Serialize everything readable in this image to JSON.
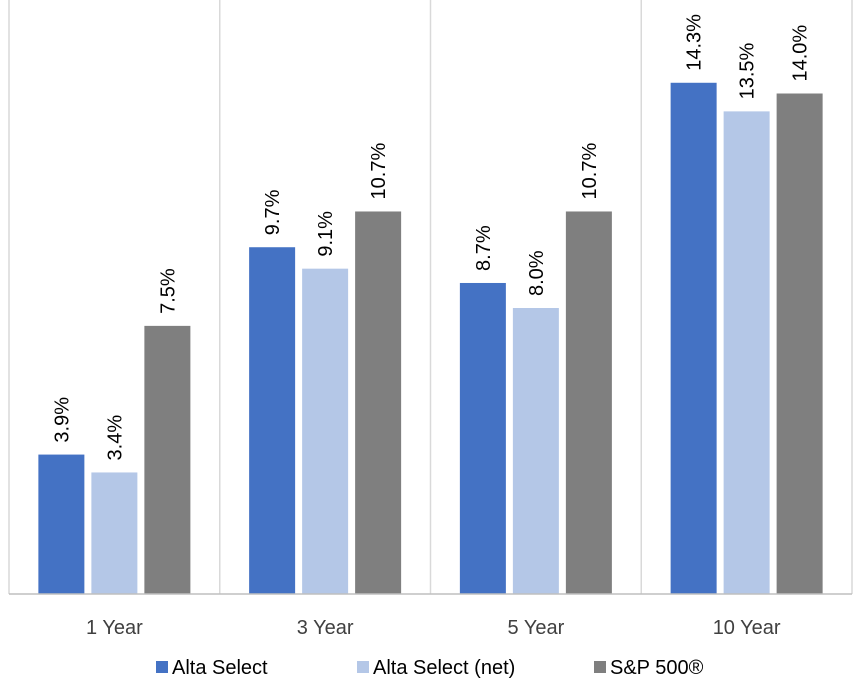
{
  "chart_data": {
    "type": "bar",
    "categories": [
      "1 Year",
      "3 Year",
      "5 Year",
      "10 Year"
    ],
    "series": [
      {
        "name": "Alta Select",
        "values": [
          3.9,
          9.7,
          8.7,
          14.3
        ],
        "color": "#4472C4"
      },
      {
        "name": "Alta Select (net)",
        "values": [
          3.4,
          9.1,
          8.0,
          13.5
        ],
        "color": "#B4C7E7"
      },
      {
        "name": "S&P 500®",
        "values": [
          7.5,
          10.7,
          10.7,
          14.0
        ],
        "color": "#7F7F7F"
      }
    ],
    "data_labels": [
      [
        "3.9%",
        "9.7%",
        "8.7%",
        "14.3%"
      ],
      [
        "3.4%",
        "9.1%",
        "8.0%",
        "13.5%"
      ],
      [
        "7.5%",
        "10.7%",
        "10.7%",
        "14.0%"
      ]
    ],
    "title": "",
    "xlabel": "",
    "ylabel": "",
    "ylim": [
      0,
      16
    ],
    "legend_position": "bottom",
    "gridlines": "vertical category separators"
  }
}
